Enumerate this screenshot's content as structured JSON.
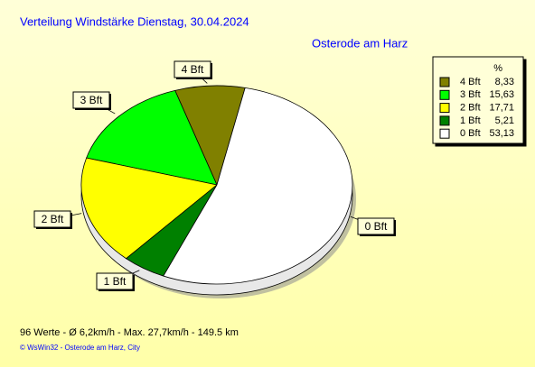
{
  "chart_data": {
    "type": "pie",
    "title": "Verteilung Windstärke  Dienstag, 30.04.2024",
    "subtitle": "Osterode am Harz",
    "legend_header": "%",
    "categories": [
      "4 Bft",
      "3 Bft",
      "2 Bft",
      "1 Bft",
      "0 Bft"
    ],
    "values": [
      8.33,
      15.63,
      17.71,
      5.21,
      53.13
    ],
    "value_labels": [
      "8,33",
      "15,63",
      "17,71",
      "5,21",
      "53,13"
    ],
    "colors": [
      "#808000",
      "#00ff00",
      "#ffff00",
      "#008000",
      "#ffffff"
    ],
    "footer": "96 Werte   -   Ø 6,2km/h  -  Max. 27,7km/h   -   149.5 km",
    "credit": "© WsWin32  -  Osterode am Harz, City"
  }
}
